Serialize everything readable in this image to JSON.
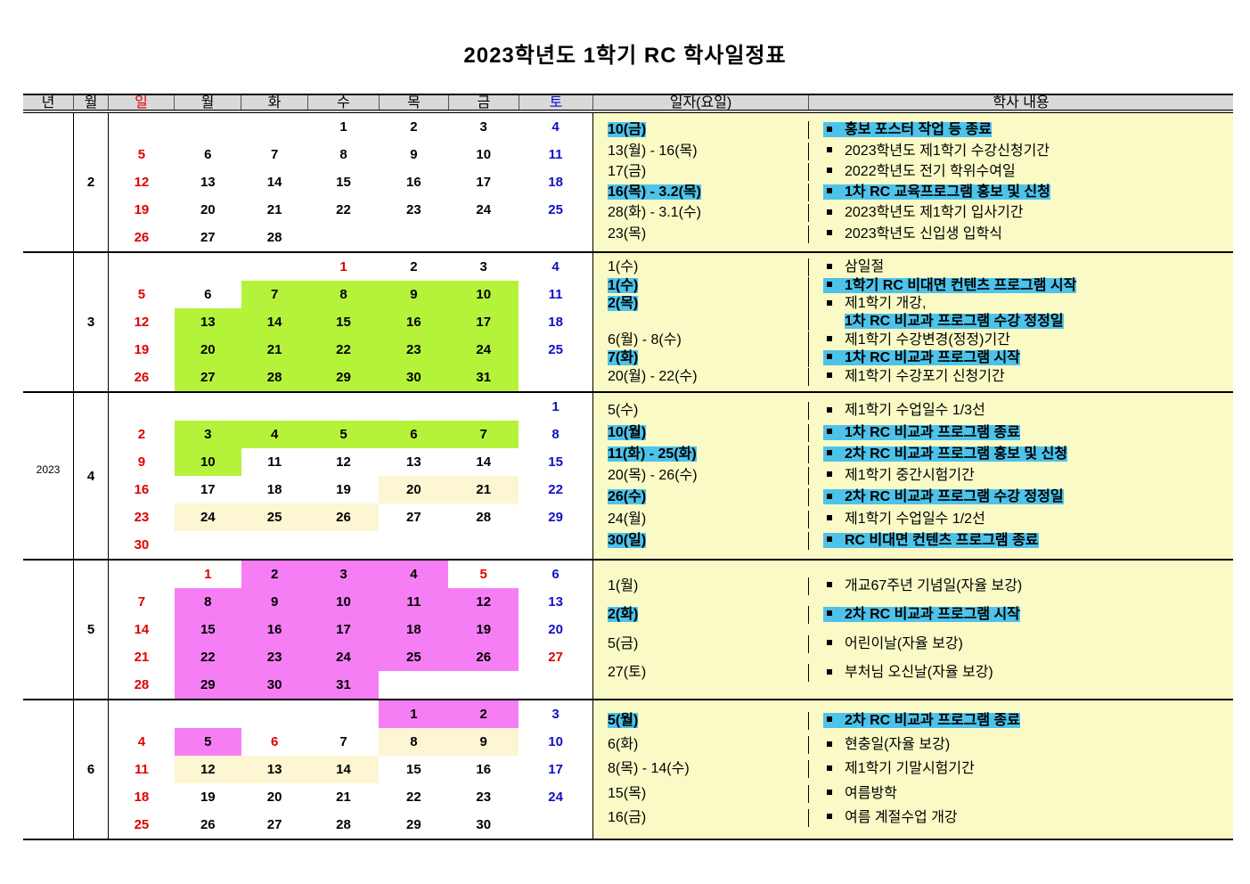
{
  "title": "2023학년도 1학기 RC 학사일정표",
  "year": "2023",
  "headers": {
    "year": "년",
    "month": "월",
    "days": [
      "일",
      "월",
      "화",
      "수",
      "목",
      "금",
      "토"
    ],
    "date": "일자(요일)",
    "content": "학사 내용"
  },
  "colors": {
    "sunday": "#e00000",
    "saturday": "#1010c8",
    "highlight": "#4dc3ea",
    "green": "#b5f23a",
    "pink": "#f57ef5",
    "lightyellow": "#fdf6d2",
    "panel": "#fafac6"
  },
  "months": [
    {
      "month": "2",
      "weeks": [
        [
          "",
          "",
          "",
          "1",
          "2",
          "3",
          "4"
        ],
        [
          "5",
          "6",
          "7",
          "8",
          "9",
          "10",
          "11"
        ],
        [
          "12",
          "13",
          "14",
          "15",
          "16",
          "17",
          "18"
        ],
        [
          "19",
          "20",
          "21",
          "22",
          "23",
          "24",
          "25"
        ],
        [
          "26",
          "27",
          "28",
          "",
          "",
          "",
          ""
        ]
      ],
      "holidays": [],
      "green": [],
      "pink": [],
      "lightyellow": [],
      "events": [
        {
          "date": "10(금)",
          "text": "홍보 포스터 작업 등 종료",
          "hl": true
        },
        {
          "date": "13(월) - 16(목)",
          "text": "2023학년도 제1학기 수강신청기간"
        },
        {
          "date": "17(금)",
          "text": "2022학년도 전기 학위수여일"
        },
        {
          "date": "16(목) - 3.2(목)",
          "text": "1차 RC 교육프로그램 홍보 및 신청",
          "hl": true
        },
        {
          "date": "28(화) - 3.1(수)",
          "text": "2023학년도 제1학기 입사기간"
        },
        {
          "date": "23(목)",
          "text": "2023학년도 신입생 입학식"
        }
      ]
    },
    {
      "month": "3",
      "weeks": [
        [
          "",
          "",
          "",
          "1",
          "2",
          "3",
          "4"
        ],
        [
          "5",
          "6",
          "7",
          "8",
          "9",
          "10",
          "11"
        ],
        [
          "12",
          "13",
          "14",
          "15",
          "16",
          "17",
          "18"
        ],
        [
          "19",
          "20",
          "21",
          "22",
          "23",
          "24",
          "25"
        ],
        [
          "26",
          "27",
          "28",
          "29",
          "30",
          "31",
          ""
        ]
      ],
      "holidays": [
        "1"
      ],
      "green": [
        "7",
        "8",
        "9",
        "10",
        "13",
        "14",
        "15",
        "16",
        "17",
        "20",
        "21",
        "22",
        "23",
        "24",
        "27",
        "28",
        "29",
        "30",
        "31"
      ],
      "pink": [],
      "lightyellow": [],
      "events": [
        {
          "date": "1(수)",
          "text": "삼일절"
        },
        {
          "date": "1(수)",
          "text": "1학기 RC 비대면 컨텐츠 프로그램 시작",
          "hl": true
        },
        {
          "date": "2(목)",
          "text": "제1학기 개강,",
          "line2": "1차 RC 비교과 프로그램 수강 정정일",
          "datehl": true
        },
        {
          "date": "6(월) - 8(수)",
          "text": "제1학기 수강변경(정정)기간"
        },
        {
          "date": "7(화)",
          "text": "1차 RC 비교과 프로그램 시작",
          "hl": true
        },
        {
          "date": "20(월) - 22(수)",
          "text": "제1학기 수강포기 신청기간"
        }
      ]
    },
    {
      "month": "4",
      "weeks": [
        [
          "",
          "",
          "",
          "",
          "",
          "",
          "1"
        ],
        [
          "2",
          "3",
          "4",
          "5",
          "6",
          "7",
          "8"
        ],
        [
          "9",
          "10",
          "11",
          "12",
          "13",
          "14",
          "15"
        ],
        [
          "16",
          "17",
          "18",
          "19",
          "20",
          "21",
          "22"
        ],
        [
          "23",
          "24",
          "25",
          "26",
          "27",
          "28",
          "29"
        ],
        [
          "30",
          "",
          "",
          "",
          "",
          "",
          ""
        ]
      ],
      "holidays": [],
      "green": [
        "3",
        "4",
        "5",
        "6",
        "7",
        "10"
      ],
      "pink": [],
      "lightyellow": [
        "20",
        "21",
        "24",
        "25",
        "26"
      ],
      "events": [
        {
          "date": "5(수)",
          "text": "제1학기 수업일수 1/3선"
        },
        {
          "date": "10(월)",
          "text": "1차 RC 비교과 프로그램 종료",
          "hl": true
        },
        {
          "date": "11(화) - 25(화)",
          "text": "2차 RC 비교과 프로그램 홍보 및 신청",
          "hl": true
        },
        {
          "date": "20(목) - 26(수)",
          "text": "제1학기 중간시험기간"
        },
        {
          "date": "26(수)",
          "text": "2차 RC 비교과 프로그램 수강 정정일",
          "hl": true
        },
        {
          "date": "24(월)",
          "text": "제1학기 수업일수 1/2선"
        },
        {
          "date": "30(일)",
          "text": "RC 비대면 컨텐츠 프로그램 종료",
          "hl": true
        }
      ]
    },
    {
      "month": "5",
      "weeks": [
        [
          "",
          "1",
          "2",
          "3",
          "4",
          "5",
          "6"
        ],
        [
          "7",
          "8",
          "9",
          "10",
          "11",
          "12",
          "13"
        ],
        [
          "14",
          "15",
          "16",
          "17",
          "18",
          "19",
          "20"
        ],
        [
          "21",
          "22",
          "23",
          "24",
          "25",
          "26",
          "27"
        ],
        [
          "28",
          "29",
          "30",
          "31",
          "",
          "",
          ""
        ]
      ],
      "holidays": [
        "1",
        "5",
        "27"
      ],
      "green": [],
      "pink": [
        "2",
        "3",
        "4",
        "8",
        "9",
        "10",
        "11",
        "12",
        "15",
        "16",
        "17",
        "18",
        "19",
        "22",
        "23",
        "24",
        "25",
        "26",
        "29",
        "30",
        "31"
      ],
      "lightyellow": [],
      "events": [
        {
          "date": "1(월)",
          "text": "개교67주년 기념일(자율 보강)"
        },
        {
          "date": "2(화)",
          "text": "2차 RC 비교과 프로그램 시작",
          "hl": true
        },
        {
          "date": "5(금)",
          "text": "어린이날(자율 보강)"
        },
        {
          "date": "27(토)",
          "text": "부처님 오신날(자율 보강)"
        }
      ]
    },
    {
      "month": "6",
      "weeks": [
        [
          "",
          "",
          "",
          "",
          "1",
          "2",
          "3"
        ],
        [
          "4",
          "5",
          "6",
          "7",
          "8",
          "9",
          "10"
        ],
        [
          "11",
          "12",
          "13",
          "14",
          "15",
          "16",
          "17"
        ],
        [
          "18",
          "19",
          "20",
          "21",
          "22",
          "23",
          "24"
        ],
        [
          "25",
          "26",
          "27",
          "28",
          "29",
          "30",
          ""
        ]
      ],
      "holidays": [
        "6"
      ],
      "green": [],
      "pink": [
        "1",
        "2",
        "5"
      ],
      "lightyellow": [
        "8",
        "9",
        "12",
        "13",
        "14"
      ],
      "events": [
        {
          "date": "5(월)",
          "text": "2차 RC 비교과 프로그램 종료",
          "hl": true
        },
        {
          "date": "6(화)",
          "text": "현충일(자율 보강)"
        },
        {
          "date": "8(목) - 14(수)",
          "text": "제1학기 기말시험기간"
        },
        {
          "date": "15(목)",
          "text": "여름방학"
        },
        {
          "date": "16(금)",
          "text": "여름 계절수업 개강"
        }
      ]
    }
  ]
}
